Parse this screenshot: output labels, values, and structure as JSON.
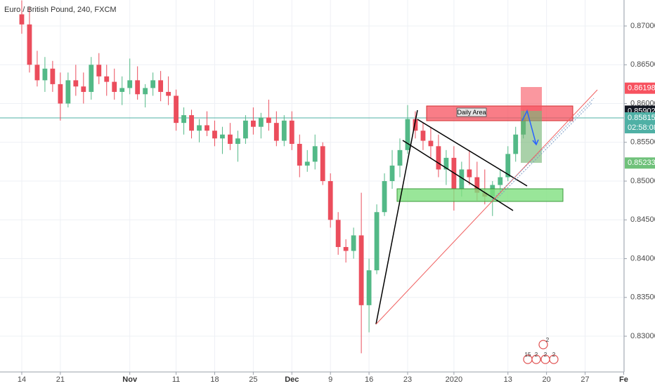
{
  "chart_data": {
    "type": "candlestick",
    "title": "Euro / British Pound, 240, FXCM",
    "up_color": "#53b987",
    "down_color": "#eb4d5c",
    "grid": true,
    "xlim": [
      -2.82,
      78.05
    ],
    "ylim": [
      0.82539,
      0.87335
    ],
    "xticks": [
      {
        "value": 0,
        "label": "14"
      },
      {
        "value": 5,
        "label": "21"
      },
      {
        "value": 14,
        "label": "Nov"
      },
      {
        "value": 20,
        "label": "11"
      },
      {
        "value": 25,
        "label": "18"
      },
      {
        "value": 30,
        "label": "25"
      },
      {
        "value": 35,
        "label": "Dec"
      },
      {
        "value": 40,
        "label": "9"
      },
      {
        "value": 45,
        "label": "16"
      },
      {
        "value": 50,
        "label": "23"
      },
      {
        "value": 56,
        "label": "2020"
      },
      {
        "value": 63,
        "label": "13"
      },
      {
        "value": 68,
        "label": "20"
      },
      {
        "value": 73,
        "label": "27"
      },
      {
        "value": 78,
        "label": "Fe"
      }
    ],
    "yticks": [
      {
        "value": 0.87,
        "label": "0.87000"
      },
      {
        "value": 0.865,
        "label": "0.86500"
      },
      {
        "value": 0.86,
        "label": "0.86000"
      },
      {
        "value": 0.855,
        "label": "0.85500"
      },
      {
        "value": 0.85,
        "label": "0.85000"
      },
      {
        "value": 0.845,
        "label": "0.84500"
      },
      {
        "value": 0.84,
        "label": "0.84000"
      },
      {
        "value": 0.835,
        "label": "0.83500"
      },
      {
        "value": 0.83,
        "label": "0.83000"
      }
    ],
    "x": [
      0,
      1,
      2,
      3,
      4,
      5,
      6,
      7,
      8,
      9,
      10,
      11,
      12,
      13,
      14,
      15,
      16,
      17,
      18,
      19,
      20,
      21,
      22,
      23,
      24,
      25,
      26,
      27,
      28,
      29,
      30,
      31,
      32,
      33,
      34,
      35,
      36,
      37,
      38,
      39,
      40,
      41,
      42,
      43,
      44,
      45,
      46,
      47,
      48,
      49,
      50,
      51,
      52,
      53,
      54,
      55,
      56,
      57,
      58,
      59,
      60,
      61,
      62,
      63,
      64,
      65
    ],
    "open": [
      0.8715,
      0.8702,
      0.865,
      0.863,
      0.8645,
      0.8625,
      0.86,
      0.863,
      0.8622,
      0.8615,
      0.865,
      0.8635,
      0.8628,
      0.8615,
      0.862,
      0.863,
      0.8612,
      0.862,
      0.863,
      0.8615,
      0.861,
      0.8575,
      0.8585,
      0.8565,
      0.8572,
      0.8565,
      0.8555,
      0.856,
      0.8548,
      0.8555,
      0.8578,
      0.857,
      0.8582,
      0.8575,
      0.8552,
      0.8578,
      0.8548,
      0.852,
      0.8525,
      0.8545,
      0.85,
      0.845,
      0.8415,
      0.841,
      0.843,
      0.834,
      0.8385,
      0.846,
      0.85,
      0.852,
      0.854,
      0.858,
      0.8565,
      0.8552,
      0.8545,
      0.8515,
      0.853,
      0.849,
      0.8515,
      0.8505,
      0.8485,
      0.848,
      0.8495,
      0.8505,
      0.8535,
      0.856
    ],
    "high": [
      0.8733,
      0.8725,
      0.8668,
      0.866,
      0.8655,
      0.864,
      0.864,
      0.865,
      0.864,
      0.866,
      0.8665,
      0.865,
      0.8645,
      0.8635,
      0.8658,
      0.8648,
      0.8625,
      0.864,
      0.8642,
      0.8635,
      0.8618,
      0.8595,
      0.8592,
      0.858,
      0.859,
      0.8578,
      0.857,
      0.8575,
      0.8565,
      0.8585,
      0.8595,
      0.8588,
      0.8605,
      0.859,
      0.8585,
      0.859,
      0.856,
      0.854,
      0.856,
      0.855,
      0.851,
      0.846,
      0.8425,
      0.844,
      0.8485,
      0.84,
      0.847,
      0.851,
      0.854,
      0.8555,
      0.8598,
      0.859,
      0.8575,
      0.857,
      0.856,
      0.854,
      0.8545,
      0.8525,
      0.854,
      0.8525,
      0.8515,
      0.85,
      0.8515,
      0.8545,
      0.857,
      0.8592
    ],
    "low": [
      0.869,
      0.864,
      0.8622,
      0.8615,
      0.8615,
      0.8578,
      0.8595,
      0.861,
      0.86,
      0.8605,
      0.8625,
      0.861,
      0.8605,
      0.8598,
      0.8612,
      0.8605,
      0.8595,
      0.861,
      0.8603,
      0.8598,
      0.8565,
      0.856,
      0.8555,
      0.855,
      0.8558,
      0.8545,
      0.8535,
      0.854,
      0.8525,
      0.8548,
      0.856,
      0.8555,
      0.8565,
      0.8545,
      0.8545,
      0.854,
      0.8505,
      0.8512,
      0.8515,
      0.8495,
      0.844,
      0.8405,
      0.8395,
      0.84,
      0.8278,
      0.8305,
      0.838,
      0.8455,
      0.849,
      0.8505,
      0.8535,
      0.8555,
      0.854,
      0.853,
      0.8505,
      0.8495,
      0.8462,
      0.848,
      0.8495,
      0.8475,
      0.847,
      0.8455,
      0.8485,
      0.85,
      0.8525,
      0.8555
    ],
    "close": [
      0.8702,
      0.865,
      0.863,
      0.8645,
      0.8625,
      0.86,
      0.863,
      0.8622,
      0.8615,
      0.865,
      0.8635,
      0.8628,
      0.8615,
      0.862,
      0.863,
      0.8612,
      0.862,
      0.863,
      0.8615,
      0.861,
      0.8575,
      0.8585,
      0.8565,
      0.8572,
      0.8565,
      0.8555,
      0.856,
      0.8548,
      0.8555,
      0.8578,
      0.857,
      0.8582,
      0.8575,
      0.8552,
      0.8578,
      0.8548,
      0.852,
      0.8525,
      0.8545,
      0.85,
      0.845,
      0.8415,
      0.841,
      0.843,
      0.834,
      0.8385,
      0.846,
      0.85,
      0.852,
      0.854,
      0.858,
      0.8565,
      0.8552,
      0.8545,
      0.8515,
      0.853,
      0.849,
      0.8515,
      0.8505,
      0.8485,
      0.848,
      0.8495,
      0.8505,
      0.8535,
      0.856,
      0.85815
    ],
    "annotation": "Daily Area",
    "price_labels": [
      {
        "value": 0.86198,
        "color": "#f7525f"
      },
      {
        "value": 0.85902,
        "color": "#131722"
      },
      {
        "value": 0.85815,
        "color": "#4fb0a5",
        "countdown": "02:58:08"
      },
      {
        "value": 0.85233,
        "color": "#6fc17a"
      }
    ],
    "event_badges": [
      "2",
      "15",
      "2",
      "2",
      "2"
    ]
  }
}
